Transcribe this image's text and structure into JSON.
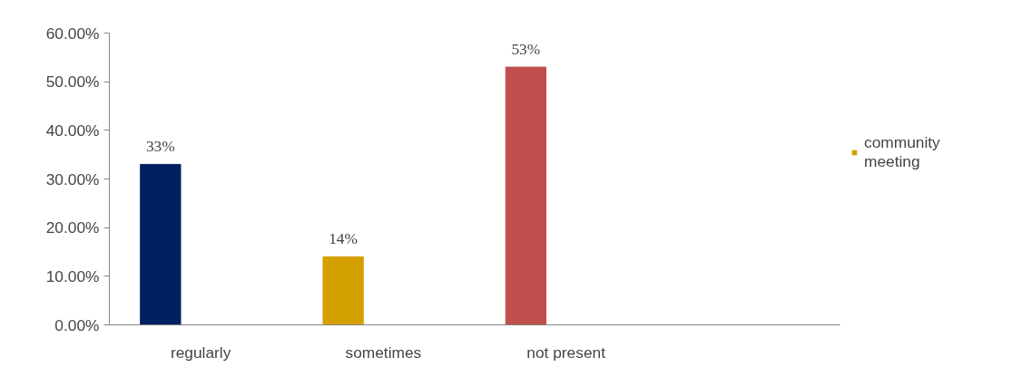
{
  "chart_data": {
    "type": "bar",
    "categories": [
      "regularly",
      "sometimes",
      "not present",
      null
    ],
    "series": [
      {
        "name": "community meeting",
        "color": "#d4a000",
        "colors": [
          "#002060",
          "#d4a000",
          "#c0504d",
          "#d4a000"
        ],
        "values": [
          33,
          14,
          53,
          null
        ],
        "value_labels": [
          "33%",
          "14%",
          "53%",
          null
        ]
      }
    ],
    "ylim": [
      0,
      60
    ],
    "yticks": [
      {
        "value": 0,
        "label": "0.00%"
      },
      {
        "value": 10,
        "label": "10.00%"
      },
      {
        "value": 20,
        "label": "20.00%"
      },
      {
        "value": 30,
        "label": "30.00%"
      },
      {
        "value": 40,
        "label": "40.00%"
      },
      {
        "value": 50,
        "label": "50.00%"
      },
      {
        "value": 60,
        "label": "60.00%"
      }
    ],
    "grid": false,
    "legend": "right"
  }
}
